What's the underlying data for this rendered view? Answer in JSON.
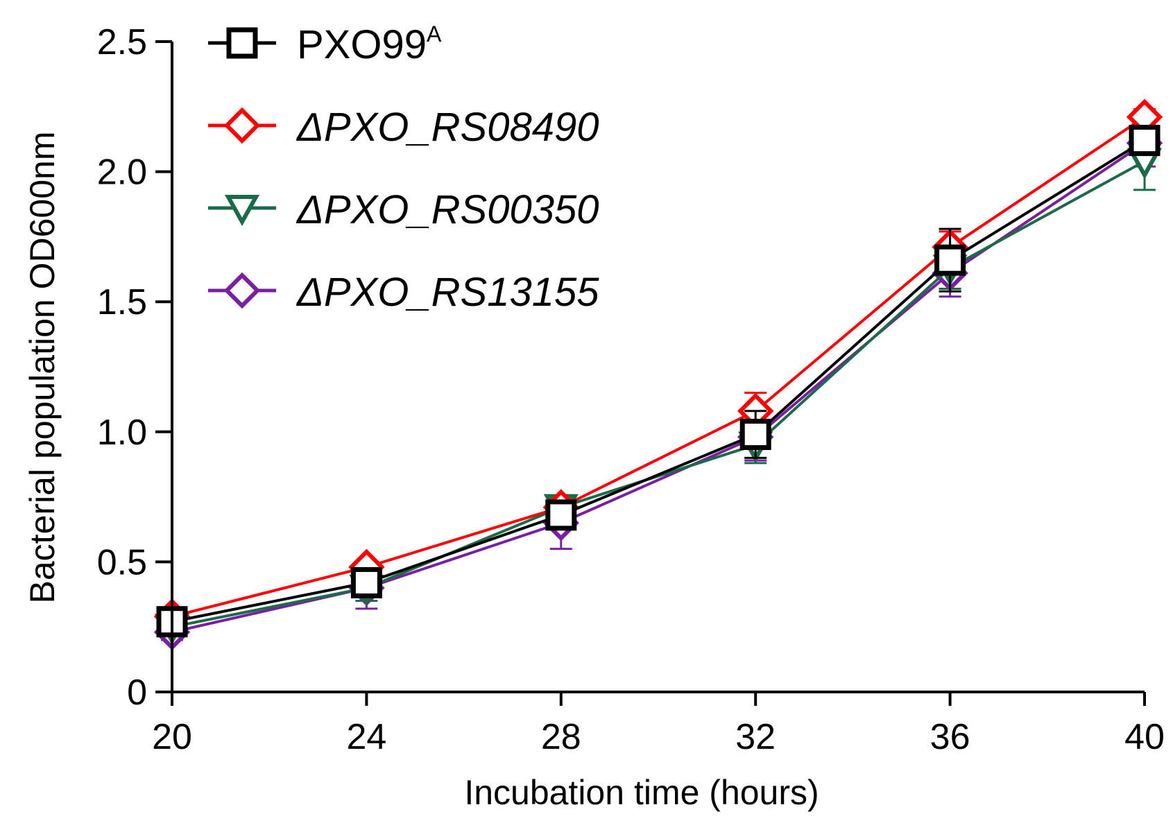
{
  "chart_data": {
    "type": "line",
    "title": "",
    "xlabel": "Incubation time (hours)",
    "ylabel": "Bacterial population OD600nm",
    "x": [
      20,
      24,
      28,
      32,
      36,
      40
    ],
    "xlim": [
      20,
      40
    ],
    "ylim": [
      0,
      2.5
    ],
    "x_ticks": [
      "20",
      "24",
      "28",
      "32",
      "36",
      "40"
    ],
    "y_ticks": [
      "0",
      "0.5",
      "1.0",
      "1.5",
      "2.0",
      "2.5"
    ],
    "y_tick_values": [
      0,
      0.5,
      1.0,
      1.5,
      2.0,
      2.5
    ],
    "grid": false,
    "legend_position": "top-left",
    "series": [
      {
        "name": "ΔPXO_RS13155",
        "label_main": "ΔPXO_RS13155",
        "italic": true,
        "color": "#7b1fa2",
        "marker": "diamond",
        "values": [
          0.23,
          0.4,
          0.65,
          0.98,
          1.61,
          2.11
        ],
        "errors": [
          0.03,
          0.08,
          0.1,
          0.09,
          0.09,
          0.09
        ]
      },
      {
        "name": "ΔPXO_RS00350",
        "label_main": "ΔPXO_RS00350",
        "italic": true,
        "color": "#1b6b4a",
        "marker": "triangle-down",
        "values": [
          0.25,
          0.4,
          0.71,
          0.95,
          1.63,
          2.04
        ],
        "errors": [
          0.03,
          0.05,
          0.04,
          0.07,
          0.08,
          0.11
        ]
      },
      {
        "name": "ΔPXO_RS08490",
        "label_main": "ΔPXO_RS08490",
        "italic": true,
        "color": "#ff0000",
        "marker": "diamond",
        "values": [
          0.29,
          0.48,
          0.71,
          1.08,
          1.71,
          2.21
        ],
        "errors": [
          0.02,
          0.02,
          0.03,
          0.07,
          0.06,
          0.03
        ]
      },
      {
        "name": "PXO99A",
        "label_main": "PXO99",
        "label_sup": "A",
        "italic": false,
        "color": "#000000",
        "marker": "square",
        "values": [
          0.27,
          0.42,
          0.68,
          0.99,
          1.66,
          2.12
        ],
        "errors": [
          0.02,
          0.03,
          0.04,
          0.09,
          0.12,
          0.05
        ]
      }
    ],
    "legend_order": [
      3,
      2,
      1,
      0
    ]
  }
}
